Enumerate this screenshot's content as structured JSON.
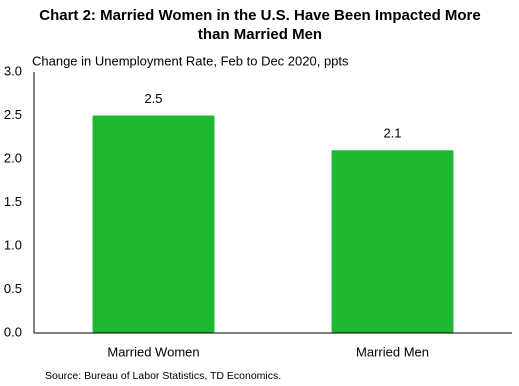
{
  "chart_data": {
    "type": "bar",
    "title": "Chart 2: Married Women in the U.S. Have Been Impacted More than Married Men",
    "y_label": "Change in Unemployment Rate, Feb to Dec 2020, ppts",
    "source": "Source:  Bureau  of Labor Statistics, TD Economics.",
    "categories": [
      "Married Women",
      "Married Men"
    ],
    "values": [
      2.5,
      2.1
    ],
    "color": "#1fb832",
    "ylim": [
      0,
      3
    ],
    "yticks": [
      {
        "value": 0,
        "label": "0.0"
      },
      0.5,
      {
        "value": 1,
        "label": "1.0"
      },
      1.5,
      {
        "value": 2,
        "label": "2.0"
      },
      2.5,
      {
        "value": 3,
        "label": "3.0"
      }
    ],
    "grid": false
  }
}
